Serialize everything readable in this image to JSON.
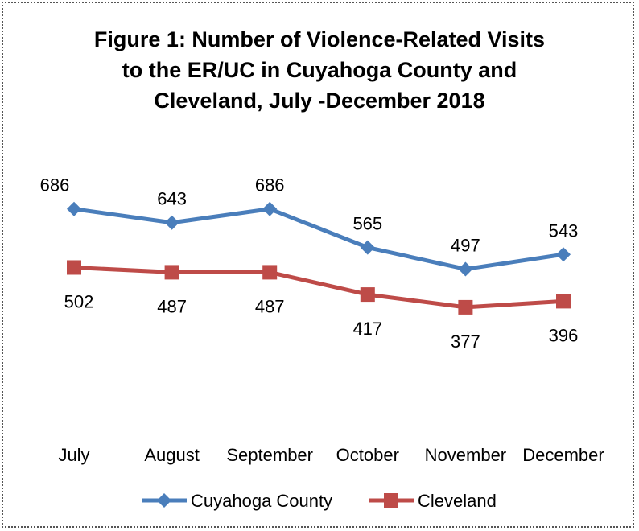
{
  "chart_data": {
    "type": "line",
    "title_lines": [
      "Figure 1:  Number of Violence-Related Visits",
      "to the ER/UC in Cuyahoga County and",
      "Cleveland, July -December 2018"
    ],
    "categories": [
      "July",
      "August",
      "September",
      "October",
      "November",
      "December"
    ],
    "series": [
      {
        "name": "Cuyahoga County",
        "values": [
          686,
          643,
          686,
          565,
          497,
          543
        ],
        "color": "#4a7ebb",
        "marker": "diamond"
      },
      {
        "name": "Cleveland",
        "values": [
          502,
          487,
          487,
          417,
          377,
          396
        ],
        "color": "#be4b48",
        "marker": "square"
      }
    ],
    "ylim": [
      0,
      1100
    ],
    "grid": false,
    "legend": "bottom"
  }
}
